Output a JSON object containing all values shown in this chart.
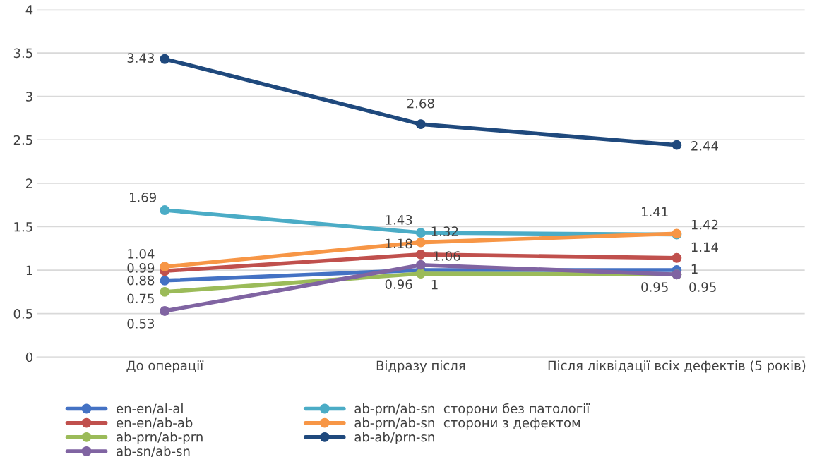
{
  "chart_data": {
    "type": "line",
    "categories": [
      "До операції",
      "Відразу після",
      "Після ліквідації всіх дефектів (5 років)"
    ],
    "series": [
      {
        "name": "en-en/al-al",
        "color": "#4472c4",
        "values": [
          0.88,
          1,
          1
        ]
      },
      {
        "name": "en-en/ab-ab",
        "color": "#c0504d",
        "values": [
          0.99,
          1.18,
          1.14
        ]
      },
      {
        "name": "ab-prn/ab-prn",
        "color": "#9bbb59",
        "values": [
          0.75,
          0.96,
          0.95
        ]
      },
      {
        "name": "ab-sn/ab-sn",
        "color": "#8064a2",
        "values": [
          0.53,
          1.06,
          0.95
        ]
      },
      {
        "name": "ab-prn/ab-sn  сторони без патології",
        "color": "#4bacc6",
        "values": [
          1.69,
          1.43,
          1.41
        ]
      },
      {
        "name": "ab-prn/ab-sn  сторони з дефектом",
        "color": "#f79646",
        "values": [
          1.04,
          1.32,
          1.42
        ]
      },
      {
        "name": "ab-ab/prn-sn",
        "color": "#1f497d",
        "values": [
          3.43,
          2.68,
          2.44
        ]
      }
    ],
    "ylim": [
      0,
      4
    ],
    "yticks": [
      0,
      0.5,
      1,
      1.5,
      2,
      2.5,
      3,
      3.5,
      4
    ],
    "grid": "y",
    "legend": "bottom",
    "marker": "circle",
    "line_style": "solid",
    "data_labels": true
  }
}
